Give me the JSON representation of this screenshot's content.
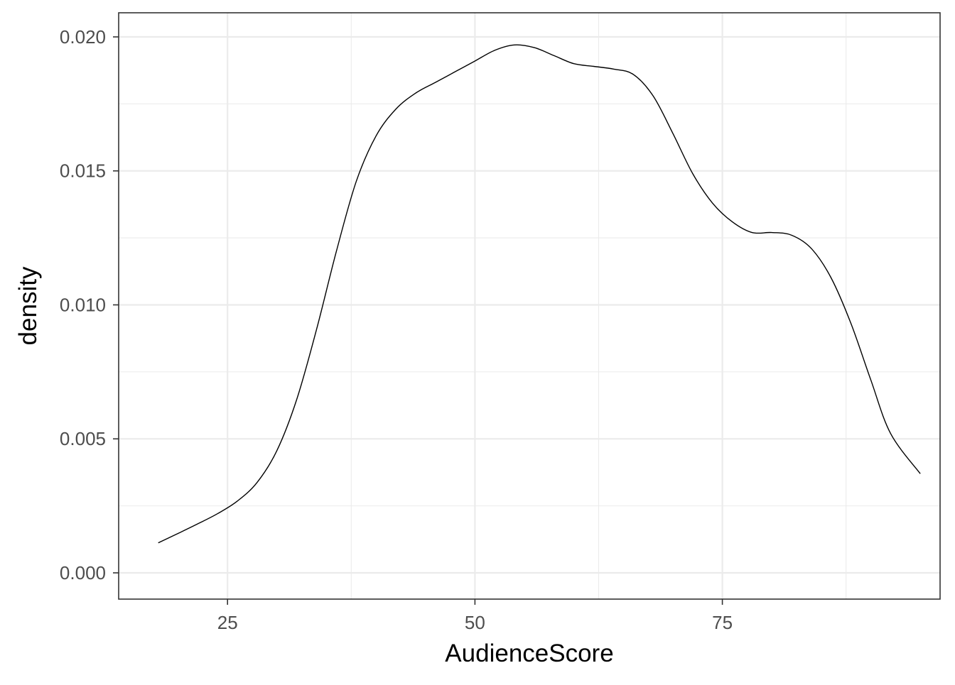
{
  "chart_data": {
    "type": "line",
    "geom": "density",
    "title": "",
    "xlabel": "AudienceScore",
    "ylabel": "density",
    "xlim": [
      14,
      97
    ],
    "ylim": [
      -0.00098,
      0.0209
    ],
    "x_ticks": [
      25,
      50,
      75
    ],
    "x_tick_labels": [
      "25",
      "50",
      "75"
    ],
    "x_minor_ticks": [
      37.5,
      62.5,
      87.5
    ],
    "y_ticks": [
      0,
      0.005,
      0.01,
      0.015,
      0.02
    ],
    "y_tick_labels": [
      "0.000",
      "0.005",
      "0.010",
      "0.015",
      "0.020"
    ],
    "y_minor_ticks": [
      0.0025,
      0.0075,
      0.0125,
      0.0175
    ],
    "grid": true,
    "theme": "bw",
    "colors": {
      "line": "#000000",
      "grid": "#ebebeb",
      "panel_border": "#333333",
      "tick_label": "#4d4d4d",
      "axis_title": "#000000"
    },
    "series": [
      {
        "x": [
          18,
          20,
          22,
          24,
          26,
          28,
          30,
          32,
          34,
          36,
          38,
          40,
          42,
          44,
          46,
          48,
          50,
          52,
          54,
          56,
          58,
          60,
          62,
          64,
          66,
          68,
          70,
          72,
          74,
          76,
          78,
          80,
          82,
          84,
          86,
          88,
          90,
          92,
          95
        ],
        "y": [
          0.00112,
          0.00147,
          0.00183,
          0.00221,
          0.00268,
          0.00338,
          0.00457,
          0.00648,
          0.00909,
          0.012,
          0.0146,
          0.0163,
          0.0173,
          0.0179,
          0.0183,
          0.0187,
          0.0191,
          0.0195,
          0.0197,
          0.0196,
          0.0193,
          0.019,
          0.0189,
          0.0188,
          0.0186,
          0.0178,
          0.0164,
          0.0149,
          0.0138,
          0.0131,
          0.0127,
          0.0127,
          0.0126,
          0.0121,
          0.011,
          0.0093,
          0.0072,
          0.0052,
          0.0037
        ]
      }
    ]
  }
}
